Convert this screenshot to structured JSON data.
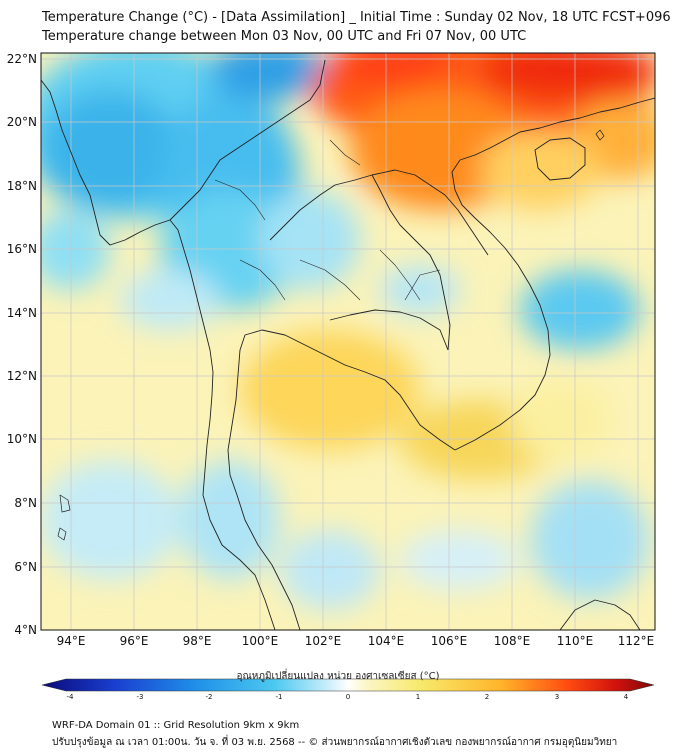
{
  "title": {
    "line1": "Temperature Change (°C) - [Data Assimilation] _ Initial Time : Sunday 02 Nov, 18 UTC FCST+096",
    "line2": "Temperature change between Mon 03 Nov, 00 UTC and Fri 07 Nov, 00 UTC"
  },
  "map": {
    "lat_labels": [
      "22°N",
      "20°N",
      "18°N",
      "16°N",
      "14°N",
      "12°N",
      "10°N",
      "8°N",
      "6°N",
      "4°N"
    ],
    "lon_labels": [
      "94°E",
      "96°E",
      "98°E",
      "100°E",
      "102°E",
      "104°E",
      "106°E",
      "108°E",
      "110°E",
      "112°E"
    ],
    "lat_range": [
      4,
      22.3
    ],
    "lon_range": [
      93,
      112.5
    ]
  },
  "colorbar": {
    "title": "อุณหภูมิเปลี่ยนแปลง หน่วย องศาเซลเซียส (°C)",
    "min": -4,
    "max": 4,
    "tick_labels": [
      "-4",
      "-3",
      "-2",
      "-1",
      "0",
      "1",
      "2",
      "3",
      "4"
    ],
    "colors": {
      "cold_extreme": "#0a0a7a",
      "cold": "#1f6fe0",
      "cool": "#4cc9f0",
      "neutral": "#ffffff",
      "warm": "#f7e96a",
      "hot": "#ff9a1a",
      "hot_extreme": "#7a0a0a"
    }
  },
  "footer": {
    "line1": "WRF-DA Domain 01 :: Grid Resolution 9km x 9km",
    "line2": "ปรับปรุงข้อมูล ณ เวลา 01:00น. วัน จ. ที่ 03 พ.ย. 2568 -- © ส่วนพยากรณ์อากาศเชิงตัวเลข กองพยากรณ์อากาศ กรมอุตุนิยมวิทยา"
  }
}
